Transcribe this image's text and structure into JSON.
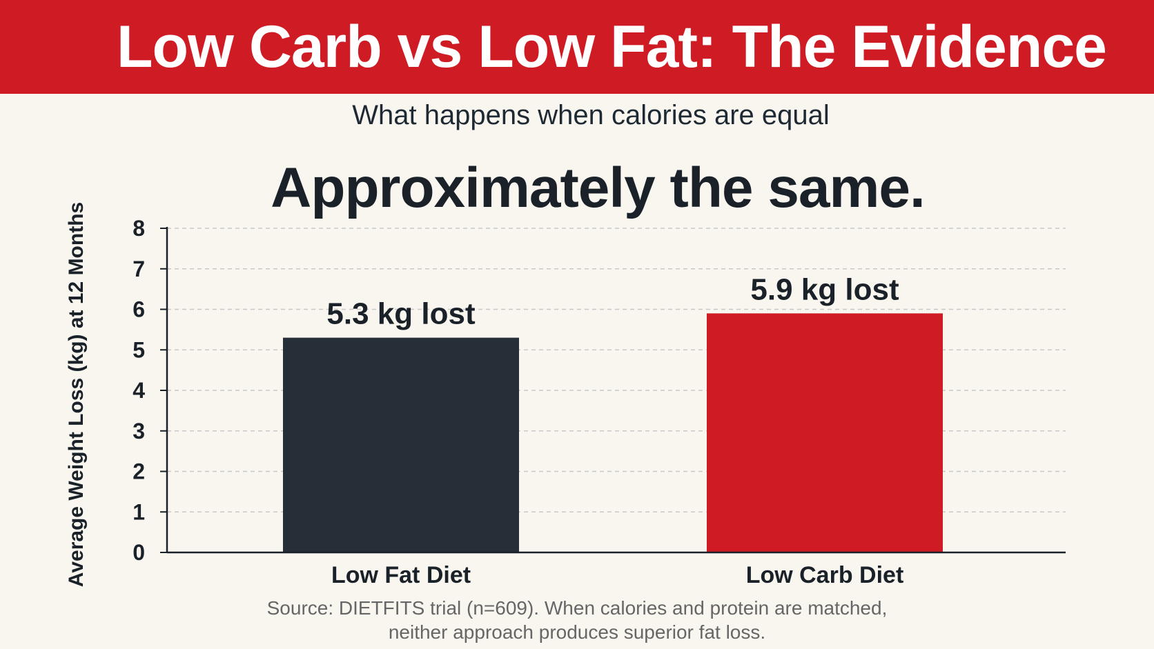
{
  "chart_data": {
    "type": "bar",
    "title": "Low Carb vs Low Fat: The Evidence",
    "subtitle": "What happens when calories are equal",
    "headline": "Approximately the same.",
    "categories": [
      "Low Fat Diet",
      "Low Carb Diet"
    ],
    "values": [
      5.3,
      5.9
    ],
    "data_labels": [
      "5.3 kg lost",
      "5.9 kg lost"
    ],
    "colors": [
      "#262e38",
      "#cf1b24"
    ],
    "xlabel": "",
    "ylabel": "Average Weight Loss (kg) at 12 Months",
    "ylim": [
      0,
      8
    ],
    "yticks": [
      0,
      1,
      2,
      3,
      4,
      5,
      6,
      7,
      8
    ],
    "grid": true,
    "source_line1": "Source: DIETFITS trial (n=609). When calories and protein are matched,",
    "source_line2": "neither approach produces superior fat loss."
  },
  "theme": {
    "banner_color": "#cf1b24",
    "background": "#f8f6ef"
  }
}
